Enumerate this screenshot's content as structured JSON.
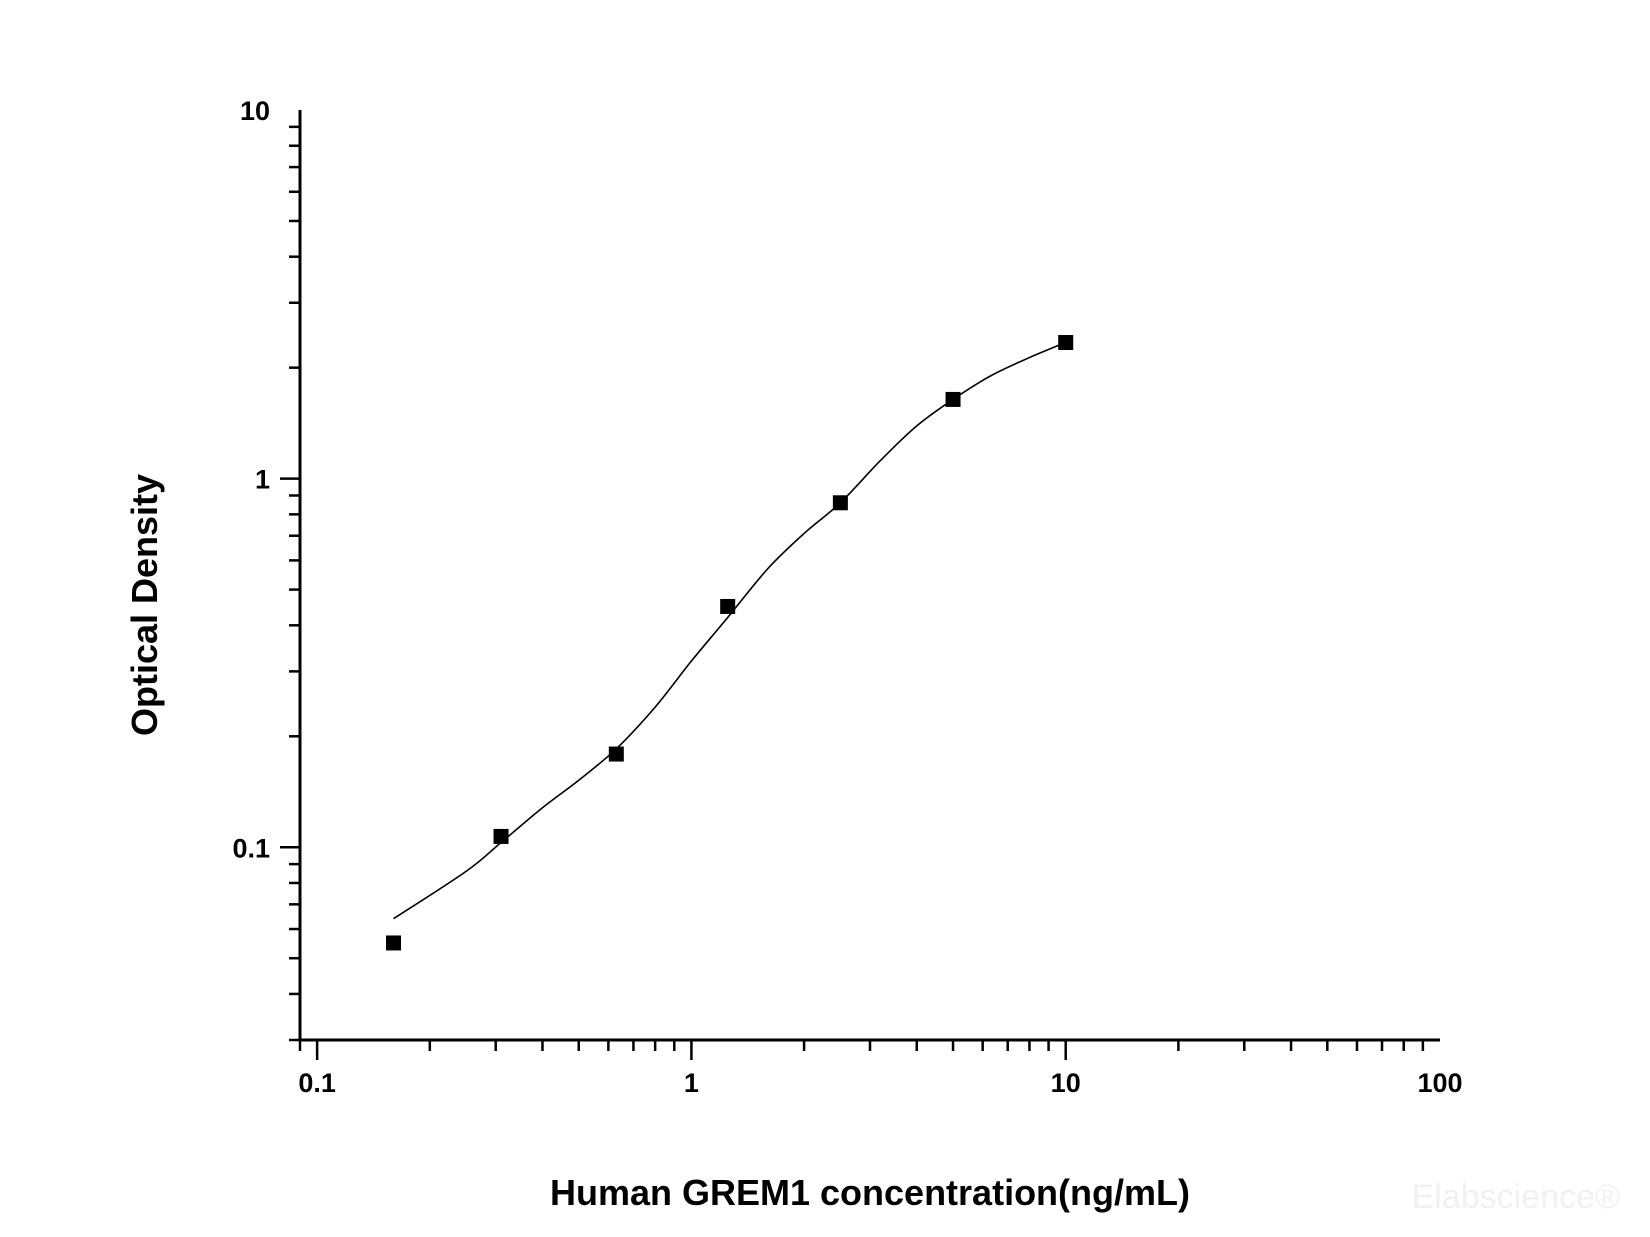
{
  "chart_data": {
    "type": "scatter",
    "title": "",
    "xlabel": "Human GREM1 concentration(ng/mL)",
    "ylabel": "Optical Density",
    "x_scale": "log",
    "y_scale": "log",
    "xlim": [
      0.09,
      100
    ],
    "ylim": [
      0.03,
      10
    ],
    "x_ticks": [
      {
        "value": 0.1,
        "label": "0.1"
      },
      {
        "value": 1,
        "label": "1"
      },
      {
        "value": 10,
        "label": "10"
      },
      {
        "value": 100,
        "label": "100"
      }
    ],
    "y_ticks": [
      {
        "value": 0.1,
        "label": "0.1"
      },
      {
        "value": 1,
        "label": "1"
      },
      {
        "value": 10,
        "label": "10"
      }
    ],
    "grid": false,
    "legend": "none",
    "series": [
      {
        "kind": "points",
        "marker": "square",
        "color": "#000000",
        "x": [
          0.16,
          0.31,
          0.63,
          1.25,
          2.5,
          5,
          10
        ],
        "y": [
          0.055,
          0.107,
          0.179,
          0.45,
          0.86,
          1.64,
          2.34
        ]
      },
      {
        "kind": "fit-curve",
        "color": "#000000",
        "x": [
          0.16,
          0.25,
          0.31,
          0.4,
          0.5,
          0.63,
          0.8,
          1.0,
          1.25,
          1.6,
          2.0,
          2.5,
          3.2,
          4.0,
          5.0,
          6.3,
          8.0,
          10
        ],
        "y": [
          0.064,
          0.086,
          0.103,
          0.128,
          0.152,
          0.185,
          0.24,
          0.32,
          0.42,
          0.57,
          0.71,
          0.86,
          1.12,
          1.39,
          1.64,
          1.9,
          2.13,
          2.34
        ]
      }
    ]
  },
  "watermark": "Elabscience®"
}
